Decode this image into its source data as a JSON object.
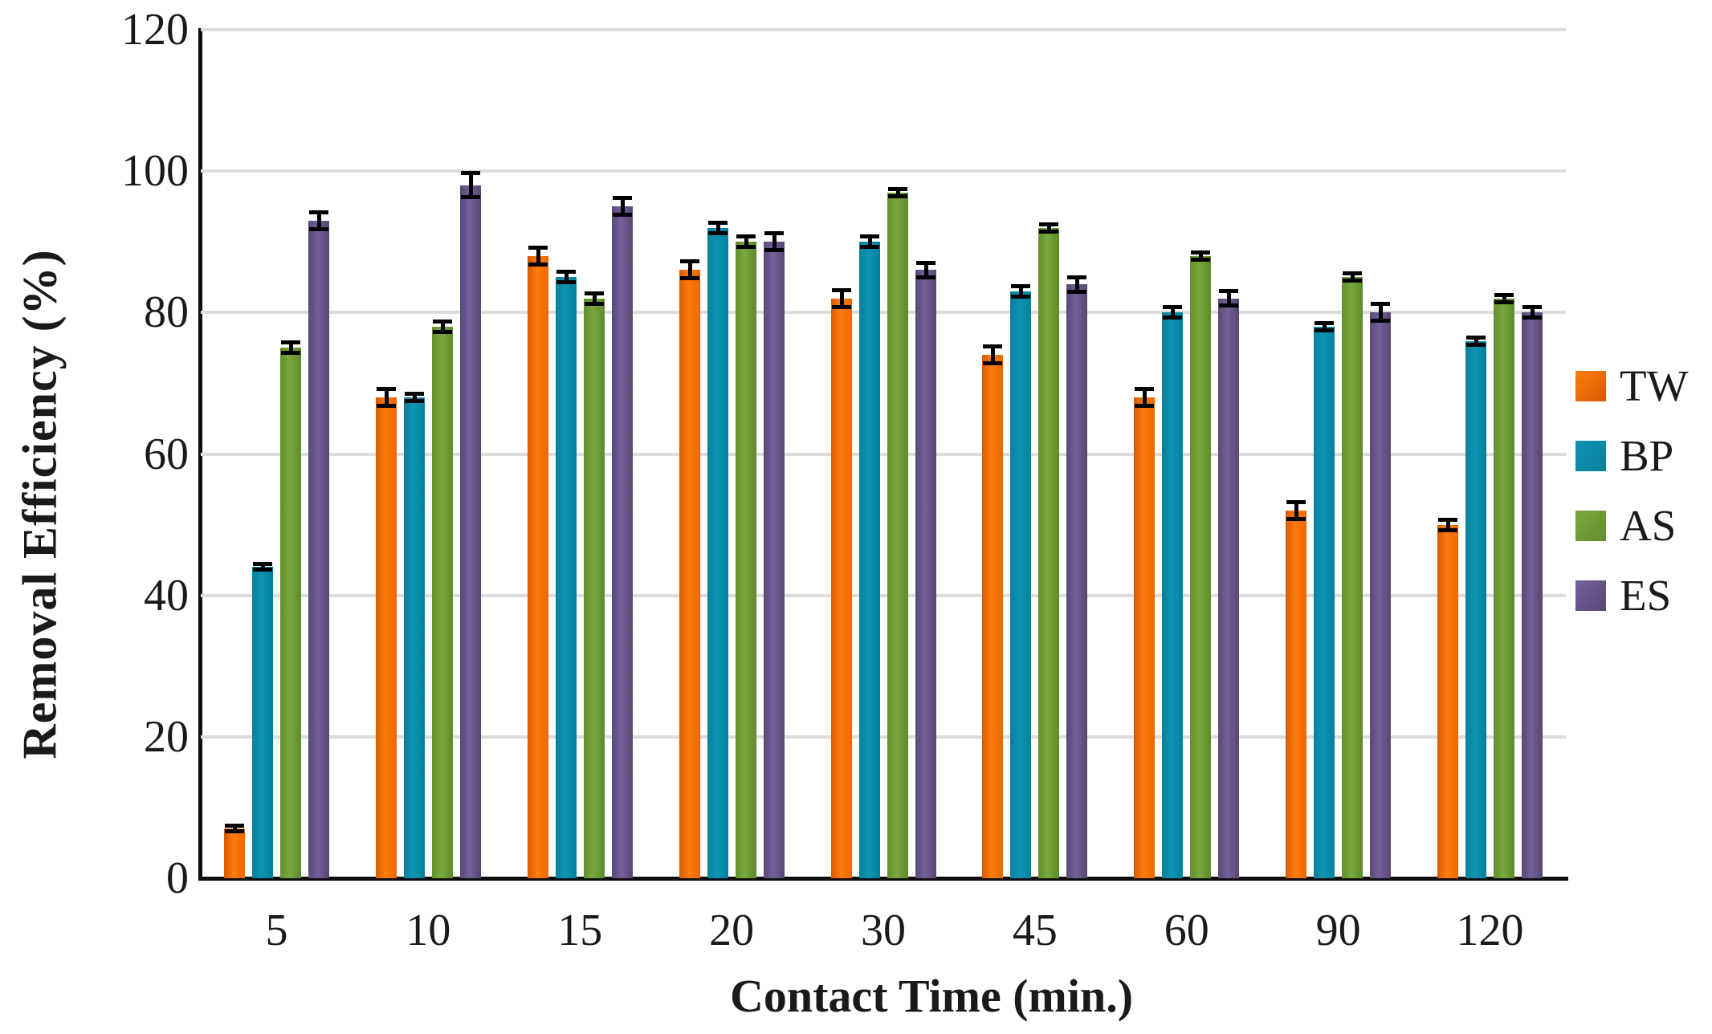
{
  "chart_data": {
    "type": "bar",
    "title": "",
    "xlabel": "Contact Time (min.)",
    "ylabel": "Removal Efficiency (%)",
    "categories": [
      "5",
      "10",
      "15",
      "20",
      "30",
      "45",
      "60",
      "90",
      "120"
    ],
    "series": [
      {
        "name": "TW",
        "values": [
          7,
          68,
          88,
          86,
          82,
          74,
          68,
          52,
          50
        ],
        "errors": [
          0.5,
          1.5,
          1.5,
          1.5,
          1.5,
          1.5,
          1.5,
          1.5,
          1.0
        ],
        "color": "#f26b05",
        "gradient": [
          "#d95804",
          "#fb7d0a",
          "#ee6600"
        ]
      },
      {
        "name": "BP",
        "values": [
          44,
          68,
          85,
          92,
          90,
          83,
          80,
          78,
          76
        ],
        "errors": [
          0.6,
          0.8,
          1.0,
          1.0,
          1.0,
          1.0,
          1.0,
          0.8,
          0.8
        ],
        "color": "#0c89a6",
        "gradient": [
          "#0a7f99",
          "#0e95b3",
          "#00809c"
        ]
      },
      {
        "name": "AS",
        "values": [
          75,
          78,
          82,
          90,
          97,
          92,
          88,
          85,
          82
        ],
        "errors": [
          1.0,
          1.0,
          1.0,
          1.0,
          0.8,
          0.8,
          0.8,
          0.8,
          0.8
        ],
        "color": "#6f9c38",
        "gradient": [
          "#648f2e",
          "#79a73c",
          "#5e8a2c"
        ]
      },
      {
        "name": "ES",
        "values": [
          93,
          98,
          95,
          90,
          86,
          84,
          82,
          80,
          80
        ],
        "errors": [
          1.5,
          2.0,
          1.5,
          1.5,
          1.3,
          1.3,
          1.3,
          1.5,
          1.0
        ],
        "color": "#63517f",
        "gradient": [
          "#5a4878",
          "#72609a",
          "#594673"
        ]
      }
    ],
    "ylim": [
      0,
      120
    ],
    "yticks": [
      0,
      20,
      40,
      60,
      80,
      100,
      120
    ],
    "grid": "horizontal-light-gray",
    "error_bars": true,
    "legend_position": "right",
    "colors": {
      "grid": "#dcdcdc",
      "axis": "#0d0d0d",
      "text": "#1a1a1a"
    }
  }
}
